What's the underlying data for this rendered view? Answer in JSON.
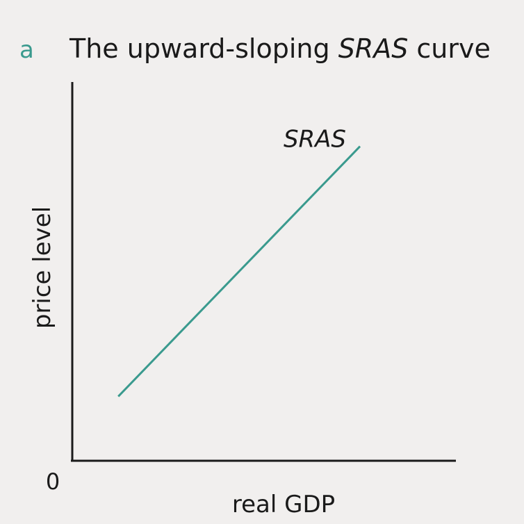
{
  "figure": {
    "panel_letter": "a",
    "title_prefix": "The upward-sloping ",
    "title_emphasis": "SRAS",
    "title_suffix": " curve",
    "accent_color": "#3a9a8e",
    "axis_color": "#1a1a1a"
  },
  "chart_data": {
    "type": "line",
    "title": "The upward-sloping SRAS curve",
    "xlabel": "real GDP",
    "ylabel": "price level",
    "origin_label": "0",
    "xlim": [
      0,
      10
    ],
    "ylim": [
      0,
      10
    ],
    "grid": false,
    "legend": "none",
    "series": [
      {
        "name": "SRAS",
        "color": "#3a9a8e",
        "x": [
          1.2,
          7.5
        ],
        "y": [
          1.7,
          8.3
        ]
      }
    ]
  }
}
